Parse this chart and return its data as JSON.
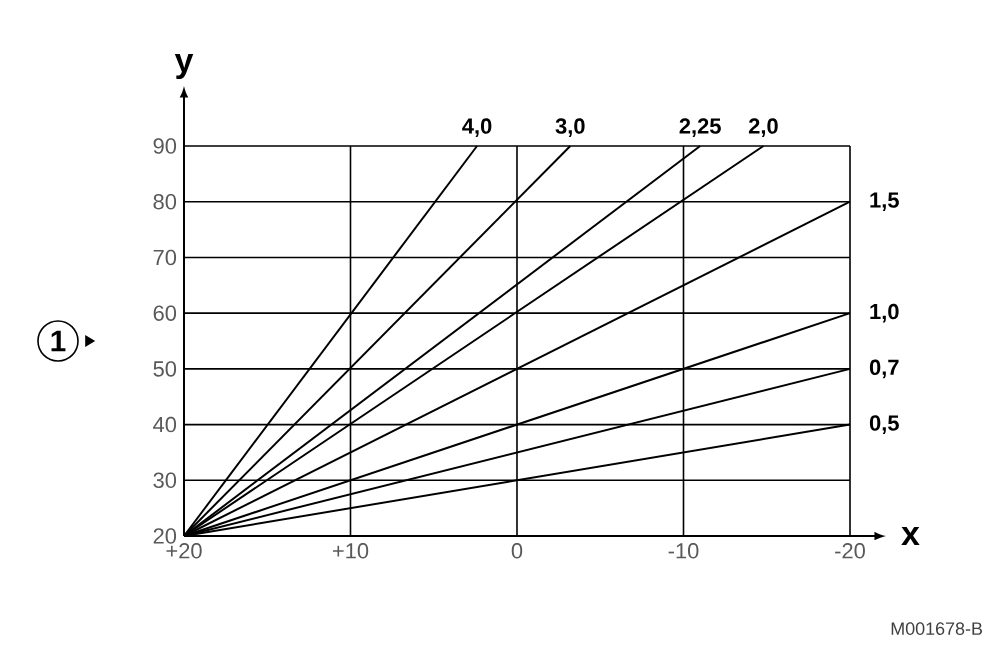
{
  "chart_data": {
    "type": "line",
    "xlabel": "x",
    "ylabel": "y",
    "xlim": [
      20,
      -20
    ],
    "ylim": [
      20,
      90
    ],
    "xticks": [
      {
        "value": 20,
        "label": "+20"
      },
      {
        "value": 10,
        "label": "+10"
      },
      0,
      -10,
      -20
    ],
    "yticks": [
      20,
      30,
      40,
      50,
      60,
      70,
      80,
      90
    ],
    "grid": true,
    "marker": "none",
    "line_style": "solid",
    "annotations": [
      "1",
      "M001678-B"
    ],
    "series": [
      {
        "name": "4,0",
        "color": "#000000",
        "x": [
          20,
          2.4
        ],
        "values": [
          20,
          90
        ]
      },
      {
        "name": "3,0",
        "color": "#000000",
        "x": [
          20,
          -3.2
        ],
        "values": [
          20,
          90
        ]
      },
      {
        "name": "2,25",
        "color": "#000000",
        "x": [
          20,
          -11
        ],
        "values": [
          20,
          90
        ]
      },
      {
        "name": "2,0",
        "color": "#000000",
        "x": [
          20,
          -14.8
        ],
        "values": [
          20,
          90
        ]
      },
      {
        "name": "1,5",
        "color": "#000000",
        "x": [
          20,
          -20
        ],
        "values": [
          20,
          80
        ]
      },
      {
        "name": "1,0",
        "color": "#000000",
        "x": [
          20,
          -20
        ],
        "values": [
          20,
          60
        ]
      },
      {
        "name": "0,7",
        "color": "#000000",
        "x": [
          20,
          -20
        ],
        "values": [
          20,
          50
        ]
      },
      {
        "name": "0,5",
        "color": "#000000",
        "x": [
          20,
          -20
        ],
        "values": [
          20,
          40
        ]
      }
    ]
  }
}
